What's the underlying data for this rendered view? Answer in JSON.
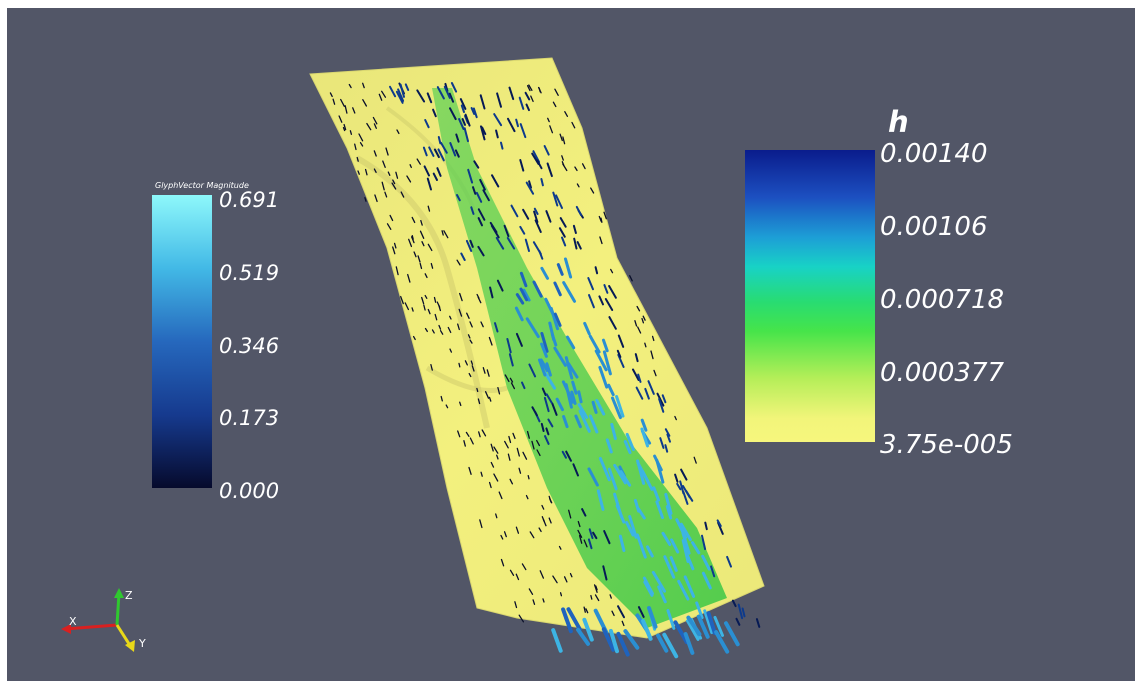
{
  "glyph_legend": {
    "title": "GlyphVector Magnitude",
    "ticks": [
      "0.691",
      "0.519",
      "0.346",
      "0.173",
      "0.000"
    ]
  },
  "h_legend": {
    "title": "h",
    "ticks": [
      "0.00140",
      "0.00106",
      "0.000718",
      "0.000377",
      "3.75e-005"
    ]
  },
  "axes": {
    "x": "X",
    "y": "Y",
    "z": "Z"
  },
  "colors": {
    "background": "#525667",
    "surface": "#f2f07c",
    "axis_x": "#d92020",
    "axis_y": "#e8d818",
    "axis_z": "#2fc82f"
  }
}
